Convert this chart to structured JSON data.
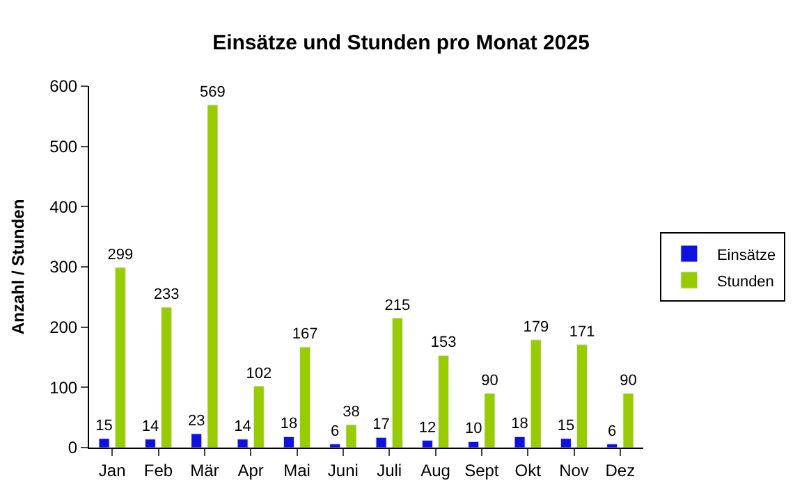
{
  "chart_data": {
    "type": "bar",
    "title": "Einsätze und Stunden pro Monat 2025",
    "ylabel": "Anzahl / Stunden",
    "categories": [
      "Jan",
      "Feb",
      "Mär",
      "Apr",
      "Mai",
      "Juni",
      "Juli",
      "Aug",
      "Sept",
      "Okt",
      "Nov",
      "Dez"
    ],
    "series": [
      {
        "name": "Einsätze",
        "color": "#1010e0",
        "values": [
          15,
          14,
          23,
          14,
          18,
          6,
          17,
          12,
          10,
          18,
          15,
          6
        ]
      },
      {
        "name": "Stunden",
        "color": "#99cc00",
        "values": [
          299,
          233,
          569,
          102,
          167,
          38,
          215,
          153,
          90,
          179,
          171,
          90
        ]
      }
    ],
    "ylim": [
      0,
      600
    ],
    "yticks": [
      0,
      100,
      200,
      300,
      400,
      500,
      600
    ],
    "legend": "right",
    "data_labels": true
  }
}
